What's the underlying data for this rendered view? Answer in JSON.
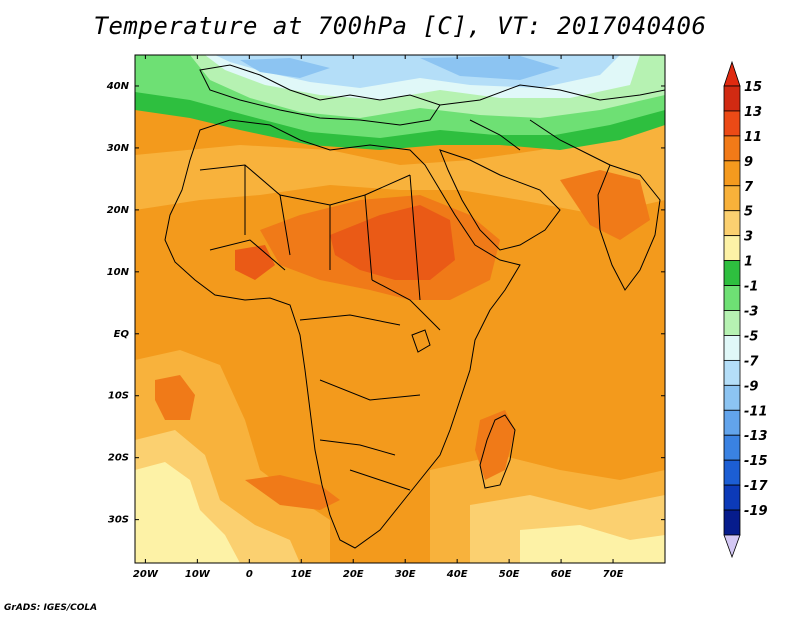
{
  "title": "Temperature at 700hPa [C], VT: 2017040406",
  "credit": "GrADS: IGES/COLA",
  "map": {
    "lon_range": [
      -22,
      80
    ],
    "lat_range": [
      -37,
      45
    ],
    "lat_ticks": [
      {
        "value": 40,
        "label": "40N"
      },
      {
        "value": 30,
        "label": "30N"
      },
      {
        "value": 20,
        "label": "20N"
      },
      {
        "value": 10,
        "label": "10N"
      },
      {
        "value": 0,
        "label": "EQ"
      },
      {
        "value": -10,
        "label": "10S"
      },
      {
        "value": -20,
        "label": "20S"
      },
      {
        "value": -30,
        "label": "30S"
      }
    ],
    "lon_ticks": [
      {
        "value": -20,
        "label": "20W"
      },
      {
        "value": -10,
        "label": "10W"
      },
      {
        "value": 0,
        "label": "0"
      },
      {
        "value": 10,
        "label": "10E"
      },
      {
        "value": 20,
        "label": "20E"
      },
      {
        "value": 30,
        "label": "30E"
      },
      {
        "value": 40,
        "label": "40E"
      },
      {
        "value": 50,
        "label": "50E"
      },
      {
        "value": 60,
        "label": "60E"
      },
      {
        "value": 70,
        "label": "70E"
      }
    ]
  },
  "colorbar": {
    "levels": [
      {
        "label": "15",
        "color": "#d12a12"
      },
      {
        "label": "13",
        "color": "#ec4a16"
      },
      {
        "label": "11",
        "color": "#f27a18"
      },
      {
        "label": "9",
        "color": "#f59a1e"
      },
      {
        "label": "7",
        "color": "#f8b13a"
      },
      {
        "label": "5",
        "color": "#fbd070"
      },
      {
        "label": "3",
        "color": "#fdf2a6"
      },
      {
        "label": "1",
        "color": "#2ebf3f"
      },
      {
        "label": "-1",
        "color": "#6ee074"
      },
      {
        "label": "-3",
        "color": "#b6f2b2"
      },
      {
        "label": "-5",
        "color": "#e0f8f8"
      },
      {
        "label": "-7",
        "color": "#b4def8"
      },
      {
        "label": "-9",
        "color": "#8cc4f2"
      },
      {
        "label": "-11",
        "color": "#62a4ec"
      },
      {
        "label": "-13",
        "color": "#3a82e2"
      },
      {
        "label": "-15",
        "color": "#1c5ed4"
      },
      {
        "label": "-17",
        "color": "#0c3ab8"
      },
      {
        "label": "-19",
        "color": "#061c8c"
      }
    ],
    "top_arrow_color": "#e02a10",
    "bottom_arrow_color": "#d4c8f4"
  },
  "field_colors": {
    "base": "#f39a1c",
    "warm": "#f07a18",
    "hot": "#ea5a16",
    "mild": "#f8b23c",
    "pale": "#fbd070",
    "cream": "#fdf2a6",
    "green_dark": "#2ebf3f",
    "green": "#6ee074",
    "green_light": "#b6f2b2",
    "cyan_pale": "#e0f8f8",
    "blue_light": "#b4def8",
    "blue": "#8cc4f2"
  }
}
